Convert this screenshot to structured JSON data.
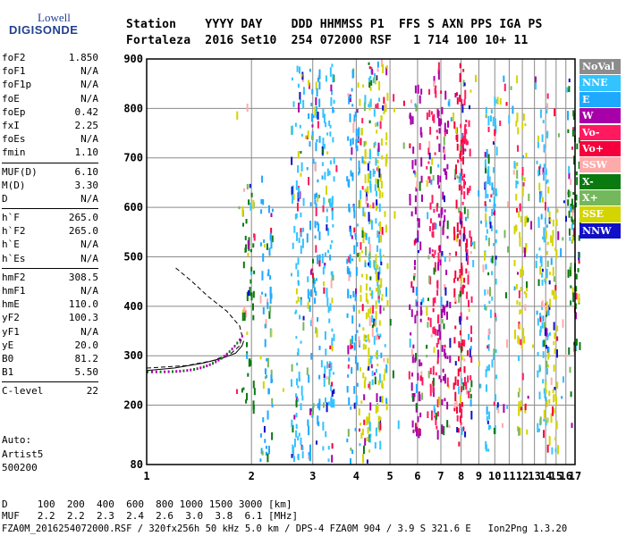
{
  "logo": {
    "line1": "Lowell",
    "line2": "DIGISONDE"
  },
  "header": {
    "line1": "Station    YYYY DAY    DDD HHMMSS P1  FFS S AXN PPS IGA PS",
    "line2": "Fortaleza  2016 Set10  254 072000 RSF   1 714 100 10+ 11"
  },
  "params": [
    {
      "name": "foF2",
      "value": "1.850"
    },
    {
      "name": "foF1",
      "value": "N/A"
    },
    {
      "name": "foF1p",
      "value": "N/A"
    },
    {
      "name": "foE",
      "value": "N/A"
    },
    {
      "name": "foEp",
      "value": "0.42"
    },
    {
      "name": "fxI",
      "value": "2.25"
    },
    {
      "name": "foEs",
      "value": "N/A"
    },
    {
      "name": "fmin",
      "value": "1.10"
    },
    {
      "name": "MUF(D)",
      "value": "6.10",
      "sep": true
    },
    {
      "name": "M(D)",
      "value": "3.30"
    },
    {
      "name": "D",
      "value": "N/A"
    },
    {
      "name": "h`F",
      "value": "265.0",
      "sep": true
    },
    {
      "name": "h`F2",
      "value": "265.0"
    },
    {
      "name": "h`E",
      "value": "N/A"
    },
    {
      "name": "h`Es",
      "value": "N/A"
    },
    {
      "name": "hmF2",
      "value": "308.5",
      "sep": true
    },
    {
      "name": "hmF1",
      "value": "N/A"
    },
    {
      "name": "hmE",
      "value": "110.0"
    },
    {
      "name": "yF2",
      "value": "100.3"
    },
    {
      "name": "yF1",
      "value": "N/A"
    },
    {
      "name": "yE",
      "value": "20.0"
    },
    {
      "name": "B0",
      "value": "81.2"
    },
    {
      "name": "B1",
      "value": "5.50"
    },
    {
      "name": "C-level",
      "value": "22",
      "sep": true
    }
  ],
  "auto": {
    "line1": "Auto:",
    "line2": "Artist5",
    "line3": "500200"
  },
  "legend": [
    {
      "label": "NoVal",
      "color": "#8c8c8c"
    },
    {
      "label": "NNE",
      "color": "#33c3ff"
    },
    {
      "label": "E",
      "color": "#1ea9ff"
    },
    {
      "label": "W",
      "color": "#a800a8"
    },
    {
      "label": "Vo-",
      "color": "#ff1a60"
    },
    {
      "label": "Vo+",
      "color": "#f5003a"
    },
    {
      "label": "SSW",
      "color": "#ffaaaa"
    },
    {
      "label": "X-",
      "color": "#0a7a10"
    },
    {
      "label": "X+",
      "color": "#74b85c"
    },
    {
      "label": "SSE",
      "color": "#d4d400"
    },
    {
      "label": "NNW",
      "color": "#1010c8"
    }
  ],
  "bottom": {
    "line1": "D     100  200  400  600  800 1000 1500 3000 [km]",
    "line2": "MUF   2.2  2.2  2.3  2.4  2.6  3.0  3.8  6.1 [MHz]",
    "line3": "FZA0M_2016254072000.RSF / 320fx256h 50 kHz 5.0 km / DPS-4 FZA0M 904 / 3.9 S 321.6 E   Ion2Png 1.3.20"
  },
  "chart_data": {
    "type": "scatter",
    "title": "",
    "xlabel": "",
    "ylabel": "",
    "xlim": [
      1,
      17
    ],
    "ylim": [
      80,
      900
    ],
    "x_ticks": [
      1,
      2,
      3,
      4,
      5,
      6,
      7,
      8,
      9,
      10,
      11,
      12,
      13,
      14,
      15,
      16,
      17
    ],
    "y_ticks": [
      80,
      200,
      300,
      400,
      500,
      600,
      700,
      800,
      900
    ],
    "grid": true,
    "x_scale": "log",
    "traces": [
      {
        "name": "profile",
        "points": [
          [
            1.0,
            275
          ],
          [
            1.3,
            280
          ],
          [
            1.55,
            290
          ],
          [
            1.75,
            305
          ],
          [
            1.85,
            320
          ],
          [
            1.88,
            340
          ],
          [
            1.85,
            360
          ],
          [
            1.7,
            390
          ],
          [
            1.5,
            420
          ],
          [
            1.35,
            450
          ],
          [
            1.2,
            480
          ]
        ]
      },
      {
        "name": "trace",
        "points": [
          [
            1.0,
            270
          ],
          [
            1.2,
            275
          ],
          [
            1.45,
            285
          ],
          [
            1.65,
            295
          ],
          [
            1.8,
            305
          ],
          [
            1.88,
            320
          ],
          [
            1.9,
            330
          ]
        ]
      }
    ],
    "echo_columns": [
      {
        "x": 1.95,
        "ymin": 200,
        "ymax": 650,
        "color": "#0a7a10"
      },
      {
        "x": 2.2,
        "ymin": 90,
        "ymax": 620,
        "color": "#1ea9ff"
      },
      {
        "x": 2.7,
        "ymin": 90,
        "ymax": 900,
        "color": "#33c3ff"
      },
      {
        "x": 3.0,
        "ymin": 90,
        "ymax": 900,
        "color": "#1ea9ff"
      },
      {
        "x": 3.3,
        "ymin": 90,
        "ymax": 900,
        "color": "#33c3ff"
      },
      {
        "x": 3.9,
        "ymin": 90,
        "ymax": 900,
        "color": "#1ea9ff"
      },
      {
        "x": 4.2,
        "ymin": 90,
        "ymax": 900,
        "color": "#d4d400"
      },
      {
        "x": 4.5,
        "ymin": 120,
        "ymax": 900,
        "color": "#33c3ff"
      },
      {
        "x": 4.7,
        "ymin": 150,
        "ymax": 900,
        "color": "#d4d400"
      },
      {
        "x": 5.9,
        "ymin": 150,
        "ymax": 850,
        "color": "#a800a8"
      },
      {
        "x": 6.6,
        "ymin": 150,
        "ymax": 900,
        "color": "#ff1a60"
      },
      {
        "x": 7.1,
        "ymin": 150,
        "ymax": 850,
        "color": "#a800a8"
      },
      {
        "x": 7.9,
        "ymin": 120,
        "ymax": 900,
        "color": "#f5003a"
      },
      {
        "x": 8.2,
        "ymin": 150,
        "ymax": 850,
        "color": "#ff1a60"
      },
      {
        "x": 9.7,
        "ymin": 100,
        "ymax": 850,
        "color": "#33c3ff"
      },
      {
        "x": 11.8,
        "ymin": 150,
        "ymax": 800,
        "color": "#d4d400"
      },
      {
        "x": 13.6,
        "ymin": 150,
        "ymax": 850,
        "color": "#33c3ff"
      },
      {
        "x": 14.5,
        "ymin": 100,
        "ymax": 600,
        "color": "#d4d400"
      },
      {
        "x": 16.8,
        "ymin": 300,
        "ymax": 850,
        "color": "#0a7a10"
      }
    ]
  }
}
